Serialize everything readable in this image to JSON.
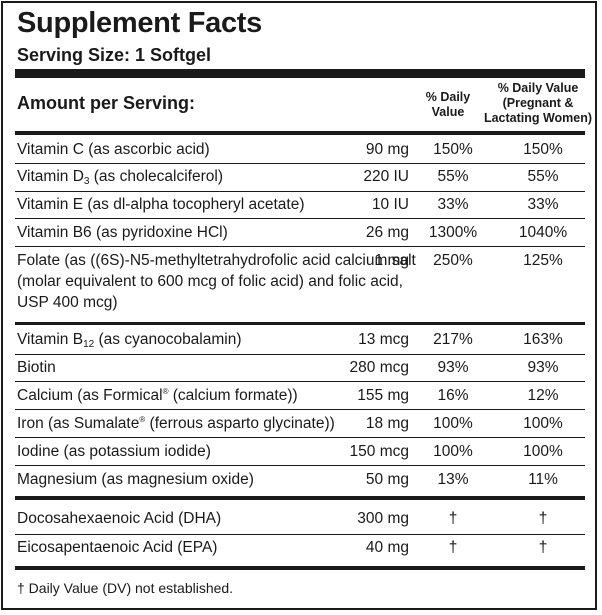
{
  "title": "Supplement Facts",
  "serving_size": "Serving Size: 1 Softgel",
  "header": {
    "amount_per_serving": "Amount per Serving:",
    "dv_line1": "% Daily",
    "dv_line2": "Value",
    "preg_line1": "% Daily Value",
    "preg_line2": "(Pregnant &",
    "preg_line3": "Lactating Women)"
  },
  "rows": [
    {
      "name_a": "Vitamin C (as ascorbic acid)",
      "amount": "90 mg",
      "dv": "150%",
      "dv_preg": "150%"
    },
    {
      "name_a": "Vitamin D",
      "name_sub": "3",
      "name_b": " (as cholecalciferol)",
      "amount": "220 IU",
      "dv": "55%",
      "dv_preg": "55%"
    },
    {
      "name_a": "Vitamin E (as dl-alpha tocopheryl acetate)",
      "amount": "10 IU",
      "dv": "33%",
      "dv_preg": "33%"
    },
    {
      "name_a": "Vitamin B6 (as pyridoxine HCl)",
      "amount": "26 mg",
      "dv": "1300%",
      "dv_preg": "1040%"
    },
    {
      "name_a": "Folate  (as ((6S)-N5-methyltetrahydrofolic acid calcium salt (molar equivalent to 600 mcg of folic acid) and folic acid, USP 400 mcg)",
      "amount": "1 mg",
      "dv": "250%",
      "dv_preg": "125%"
    },
    {
      "name_a": "Vitamin B",
      "name_sub": "12",
      "name_b": " (as cyanocobalamin)",
      "amount": "13 mcg",
      "dv": "217%",
      "dv_preg": "163%"
    },
    {
      "name_a": "Biotin",
      "amount": "280 mcg",
      "dv": "93%",
      "dv_preg": "93%"
    },
    {
      "name_a": "Calcium (as Formical",
      "name_sup": "®",
      "name_b": " (calcium formate))",
      "amount": "155 mg",
      "dv": "16%",
      "dv_preg": "12%"
    },
    {
      "name_a": "Iron (as Sumalate",
      "name_sup": "®",
      "name_b": " (ferrous asparto glycinate))",
      "amount": "18 mg",
      "dv": "100%",
      "dv_preg": "100%"
    },
    {
      "name_a": "Iodine (as potassium iodide)",
      "amount": "150 mcg",
      "dv": "100%",
      "dv_preg": "100%"
    },
    {
      "name_a": "Magnesium (as magnesium oxide)",
      "amount": "50 mg",
      "dv": "13%",
      "dv_preg": "11%"
    },
    {
      "name_a": "Docosahexaenoic Acid (DHA)",
      "amount": "300 mg",
      "dv": "†",
      "dv_preg": "†"
    },
    {
      "name_a": "Eicosapentaenoic Acid (EPA)",
      "amount": "40 mg",
      "dv": "†",
      "dv_preg": "†"
    }
  ],
  "footnote": "† Daily Value (DV) not established."
}
